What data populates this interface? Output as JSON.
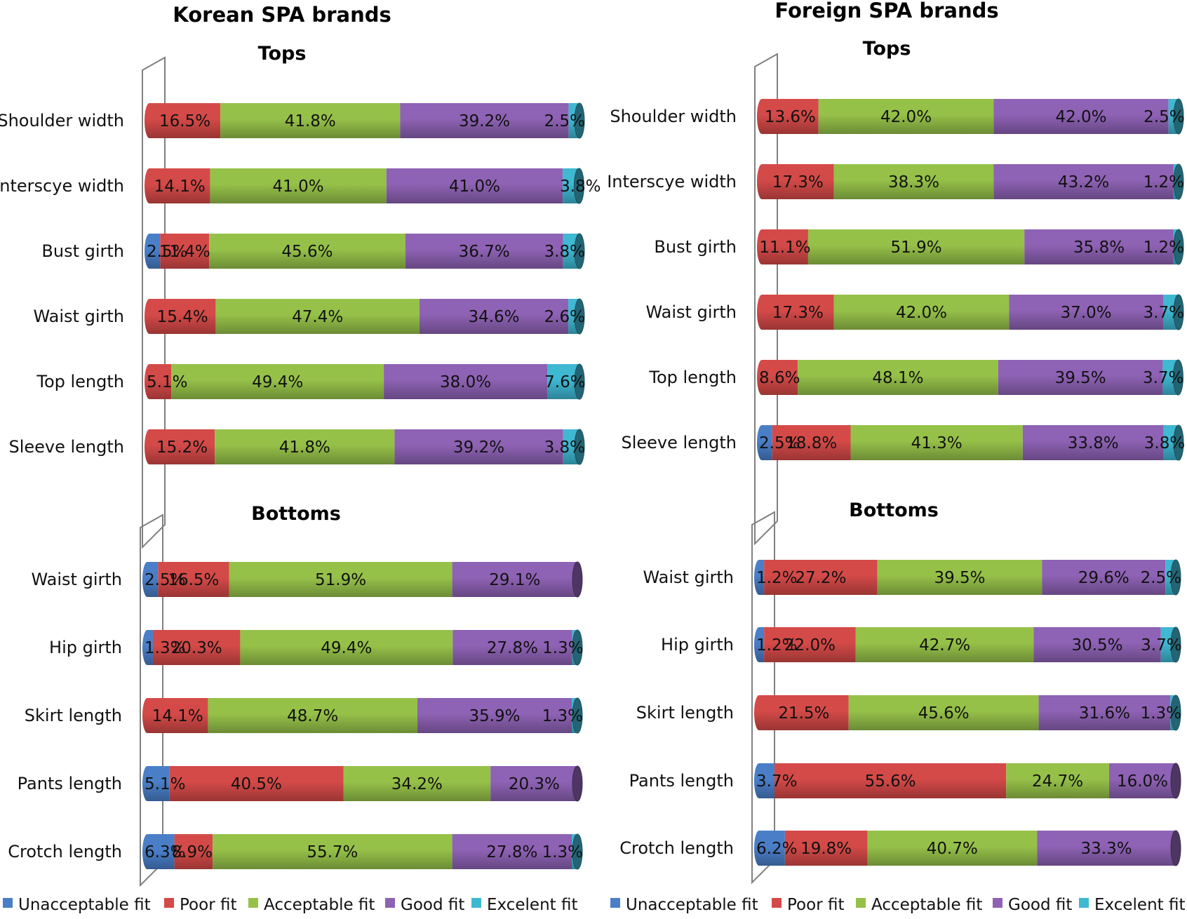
{
  "legend": [
    {
      "key": "unacceptable",
      "label": "Unacceptable fit",
      "color": "#4a7fc8"
    },
    {
      "key": "poor",
      "label": "Poor fit",
      "color": "#d44a48"
    },
    {
      "key": "acceptable",
      "label": "Acceptable fit",
      "color": "#96c149"
    },
    {
      "key": "good",
      "label": "Good fit",
      "color": "#8e62b4"
    },
    {
      "key": "excellent",
      "label": "Excelent fit",
      "color": "#3fb8d2"
    }
  ],
  "groups": {
    "korean": {
      "title": "Korean SPA brands"
    },
    "foreign": {
      "title": "Foreign SPA brands"
    }
  },
  "chart_data": [
    {
      "type": "bar",
      "stacked": "100%",
      "orientation": "horizontal",
      "group": "Korean SPA brands",
      "title": "Tops",
      "categories": [
        "Shoulder width",
        "Interscye width",
        "Bust girth",
        "Waist girth",
        "Top length",
        "Sleeve length"
      ],
      "series": [
        {
          "name": "Unacceptable fit",
          "values": [
            0,
            0,
            2.5,
            0,
            0,
            0
          ]
        },
        {
          "name": "Poor fit",
          "values": [
            16.5,
            14.1,
            11.4,
            15.4,
            5.1,
            15.2
          ]
        },
        {
          "name": "Acceptable fit",
          "values": [
            41.8,
            41.0,
            45.6,
            47.4,
            49.4,
            41.8
          ]
        },
        {
          "name": "Good fit",
          "values": [
            39.2,
            41.0,
            36.7,
            34.6,
            38.0,
            39.2
          ]
        },
        {
          "name": "Excelent fit",
          "values": [
            2.5,
            3.8,
            3.8,
            2.6,
            7.6,
            3.8
          ]
        }
      ]
    },
    {
      "type": "bar",
      "stacked": "100%",
      "orientation": "horizontal",
      "group": "Foreign SPA brands",
      "title": "Tops",
      "categories": [
        "Shoulder width",
        "Interscye width",
        "Bust girth",
        "Waist girth",
        "Top length",
        "Sleeve length"
      ],
      "series": [
        {
          "name": "Unacceptable fit",
          "values": [
            0,
            0,
            0,
            0,
            0,
            2.5
          ]
        },
        {
          "name": "Poor fit",
          "values": [
            13.6,
            17.3,
            11.1,
            17.3,
            8.6,
            18.8
          ]
        },
        {
          "name": "Acceptable fit",
          "values": [
            42.0,
            38.3,
            51.9,
            42.0,
            48.1,
            41.3
          ]
        },
        {
          "name": "Good fit",
          "values": [
            42.0,
            43.2,
            35.8,
            37.0,
            39.5,
            33.8
          ]
        },
        {
          "name": "Excelent fit",
          "values": [
            2.5,
            1.2,
            1.2,
            3.7,
            3.7,
            3.8
          ]
        }
      ]
    },
    {
      "type": "bar",
      "stacked": "100%",
      "orientation": "horizontal",
      "group": "Korean SPA brands",
      "title": "Bottoms",
      "categories": [
        "Waist girth",
        "Hip girth",
        "Skirt length",
        "Pants length",
        "Crotch length"
      ],
      "series": [
        {
          "name": "Unacceptable fit",
          "values": [
            2.5,
            1.3,
            0,
            5.1,
            6.3
          ]
        },
        {
          "name": "Poor fit",
          "values": [
            16.5,
            20.3,
            14.1,
            40.5,
            8.9
          ]
        },
        {
          "name": "Acceptable fit",
          "values": [
            51.9,
            49.4,
            48.7,
            34.2,
            55.7
          ]
        },
        {
          "name": "Good fit",
          "values": [
            29.1,
            27.8,
            35.9,
            20.3,
            27.8
          ]
        },
        {
          "name": "Excelent fit",
          "values": [
            0,
            1.3,
            1.3,
            0,
            1.3
          ]
        }
      ]
    },
    {
      "type": "bar",
      "stacked": "100%",
      "orientation": "horizontal",
      "group": "Foreign SPA brands",
      "title": "Bottoms",
      "categories": [
        "Waist girth",
        "Hip girth",
        "Skirt length",
        "Pants length",
        "Crotch length"
      ],
      "series": [
        {
          "name": "Unacceptable fit",
          "values": [
            1.2,
            1.2,
            0,
            3.7,
            6.2
          ]
        },
        {
          "name": "Poor fit",
          "values": [
            27.2,
            22.0,
            21.5,
            55.6,
            19.8
          ]
        },
        {
          "name": "Acceptable fit",
          "values": [
            39.5,
            42.7,
            45.6,
            24.7,
            40.7
          ]
        },
        {
          "name": "Good fit",
          "values": [
            29.6,
            30.5,
            31.6,
            16.0,
            33.3
          ]
        },
        {
          "name": "Excelent fit",
          "values": [
            2.5,
            3.7,
            1.3,
            0,
            0
          ]
        }
      ]
    }
  ]
}
